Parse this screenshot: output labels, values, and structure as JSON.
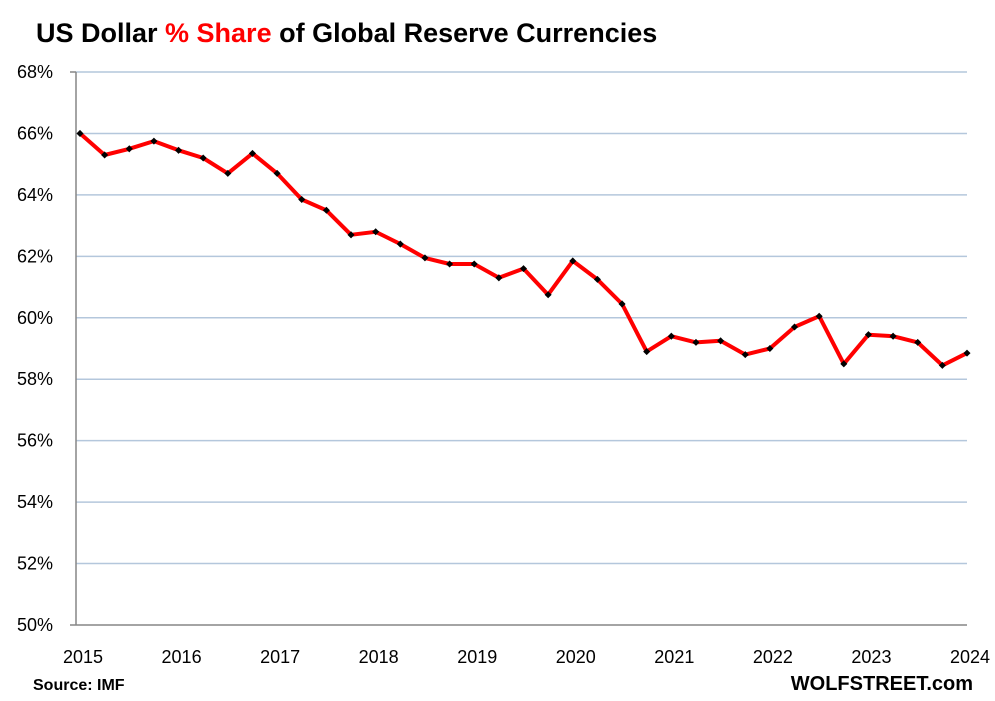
{
  "title": {
    "part1": "US Dollar ",
    "highlight": "% Share",
    "part2": " of Global Reserve Currencies"
  },
  "source": "Source: IMF",
  "brand": "WOLFSTREET.com",
  "colors": {
    "line": "#ff0000",
    "markers": "#000000",
    "grid": "#b4c7dc",
    "axis": "#868686",
    "highlight": "#ff0000"
  },
  "chart_data": {
    "type": "line",
    "title": "US Dollar % Share of Global Reserve Currencies",
    "xlabel": "",
    "ylabel": "",
    "ylim": [
      50,
      68
    ],
    "xlim": [
      2015,
      2024
    ],
    "grid": true,
    "yticks": [
      "50%",
      "52%",
      "54%",
      "56%",
      "58%",
      "60%",
      "62%",
      "64%",
      "66%",
      "68%"
    ],
    "xticks": [
      "2015",
      "2016",
      "2017",
      "2018",
      "2019",
      "2020",
      "2021",
      "2022",
      "2023",
      "2024"
    ],
    "frequency": "quarterly",
    "x": [
      "2015Q1",
      "2015Q2",
      "2015Q3",
      "2015Q4",
      "2016Q1",
      "2016Q2",
      "2016Q3",
      "2016Q4",
      "2017Q1",
      "2017Q2",
      "2017Q3",
      "2017Q4",
      "2018Q1",
      "2018Q2",
      "2018Q3",
      "2018Q4",
      "2019Q1",
      "2019Q2",
      "2019Q3",
      "2019Q4",
      "2020Q1",
      "2020Q2",
      "2020Q3",
      "2020Q4",
      "2021Q1",
      "2021Q2",
      "2021Q3",
      "2021Q4",
      "2022Q1",
      "2022Q2",
      "2022Q3",
      "2022Q4",
      "2023Q1",
      "2023Q2",
      "2023Q3",
      "2023Q4",
      "2024Q1"
    ],
    "values": [
      66.0,
      65.3,
      65.5,
      65.75,
      65.45,
      65.2,
      64.7,
      65.35,
      64.7,
      63.85,
      63.5,
      62.7,
      62.8,
      62.4,
      61.95,
      61.75,
      61.75,
      61.3,
      61.6,
      60.75,
      61.85,
      61.25,
      60.45,
      58.9,
      59.4,
      59.2,
      59.25,
      58.8,
      59.0,
      59.7,
      60.05,
      58.5,
      59.45,
      59.4,
      59.2,
      58.45,
      58.85
    ]
  }
}
